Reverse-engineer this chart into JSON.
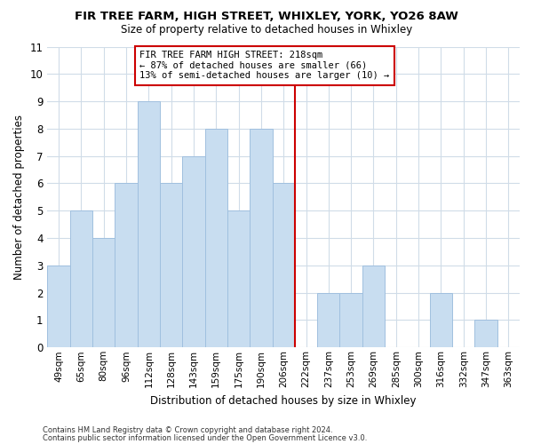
{
  "title1": "FIR TREE FARM, HIGH STREET, WHIXLEY, YORK, YO26 8AW",
  "title2": "Size of property relative to detached houses in Whixley",
  "xlabel": "Distribution of detached houses by size in Whixley",
  "ylabel": "Number of detached properties",
  "categories": [
    "49sqm",
    "65sqm",
    "80sqm",
    "96sqm",
    "112sqm",
    "128sqm",
    "143sqm",
    "159sqm",
    "175sqm",
    "190sqm",
    "206sqm",
    "222sqm",
    "237sqm",
    "253sqm",
    "269sqm",
    "285sqm",
    "300sqm",
    "316sqm",
    "332sqm",
    "347sqm",
    "363sqm"
  ],
  "values": [
    3,
    5,
    4,
    6,
    9,
    6,
    7,
    8,
    5,
    8,
    6,
    0,
    2,
    2,
    3,
    0,
    0,
    2,
    0,
    1,
    0
  ],
  "bar_color": "#c8ddf0",
  "bar_edge_color": "#a0c0df",
  "vline_x": 10.5,
  "vline_color": "#cc0000",
  "ylim": [
    0,
    11
  ],
  "yticks": [
    0,
    1,
    2,
    3,
    4,
    5,
    6,
    7,
    8,
    9,
    10,
    11
  ],
  "annotation_text": "FIR TREE FARM HIGH STREET: 218sqm\n← 87% of detached houses are smaller (66)\n13% of semi-detached houses are larger (10) →",
  "annotation_box_color": "#ffffff",
  "annotation_box_edge": "#cc0000",
  "footer1": "Contains HM Land Registry data © Crown copyright and database right 2024.",
  "footer2": "Contains public sector information licensed under the Open Government Licence v3.0.",
  "bg_color": "#ffffff",
  "plot_bg_color": "#ffffff"
}
